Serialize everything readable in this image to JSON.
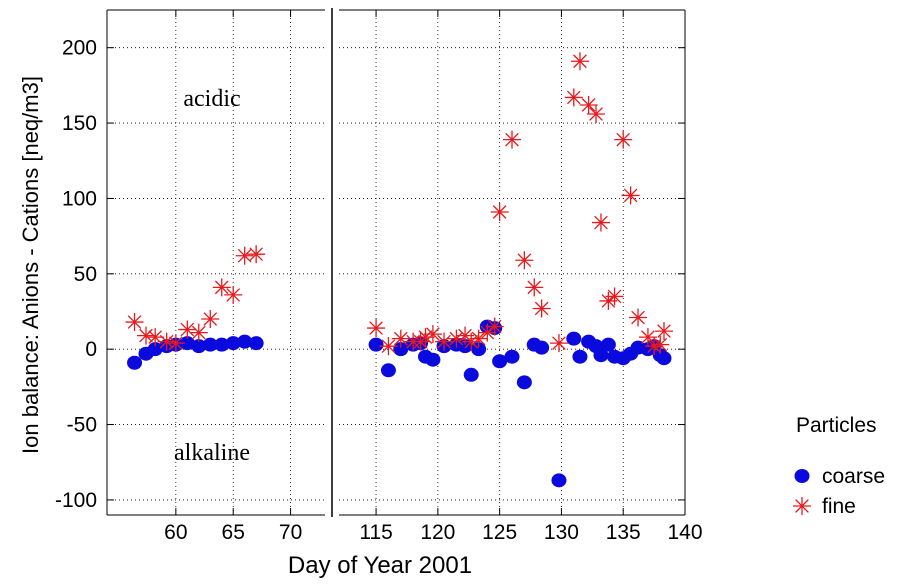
{
  "chart_data": {
    "type": "scatter",
    "ylabel": "Ion balance:  Anions - Cations  [neq/m3]",
    "xlabel": "Day of Year 2001",
    "ylim": [
      -110,
      225
    ],
    "grid": "dotted",
    "panels": [
      {
        "xlim": [
          54,
          73
        ],
        "xticks": [
          60,
          65,
          70
        ]
      },
      {
        "xlim": [
          112,
          140
        ],
        "xticks": [
          115,
          120,
          125,
          130,
          135,
          140
        ]
      }
    ],
    "yticks": [
      200,
      150,
      100,
      50,
      0,
      -50,
      -100
    ],
    "annotations": [
      {
        "text": "acidic",
        "x": 63.5,
        "y": 170
      },
      {
        "text": "alkaline",
        "x": 63.5,
        "y": -78
      }
    ],
    "legend": {
      "title": "Particles",
      "position": "right",
      "entries": [
        "coarse",
        "fine"
      ]
    },
    "colors": {
      "coarse": "#0a0adf",
      "fine": "#e8191c"
    },
    "series": [
      {
        "name": "coarse",
        "marker": "circle",
        "points": [
          [
            56.4,
            -9
          ],
          [
            57.4,
            -3
          ],
          [
            58.2,
            0
          ],
          [
            59.2,
            2
          ],
          [
            60.0,
            3
          ],
          [
            61.0,
            4
          ],
          [
            62.0,
            2
          ],
          [
            63.0,
            3
          ],
          [
            64.0,
            3
          ],
          [
            65.0,
            4
          ],
          [
            66.0,
            5
          ],
          [
            67.0,
            4
          ],
          [
            115.0,
            3
          ],
          [
            116.0,
            -14
          ],
          [
            117.0,
            0
          ],
          [
            118.0,
            3
          ],
          [
            118.6,
            4
          ],
          [
            119.0,
            -5
          ],
          [
            119.6,
            -7
          ],
          [
            120.5,
            2
          ],
          [
            121.5,
            3
          ],
          [
            122.2,
            2
          ],
          [
            122.7,
            -17
          ],
          [
            123.3,
            0
          ],
          [
            124.0,
            15
          ],
          [
            124.6,
            14
          ],
          [
            125.0,
            -8
          ],
          [
            126.0,
            -5
          ],
          [
            127.0,
            -22
          ],
          [
            127.8,
            3
          ],
          [
            128.4,
            1
          ],
          [
            129.8,
            -87
          ],
          [
            131.0,
            7
          ],
          [
            131.5,
            -5
          ],
          [
            132.2,
            5
          ],
          [
            132.8,
            2
          ],
          [
            133.2,
            -4
          ],
          [
            133.8,
            3
          ],
          [
            134.3,
            -5
          ],
          [
            135.0,
            -6
          ],
          [
            135.6,
            -3
          ],
          [
            136.2,
            1
          ],
          [
            137.0,
            0
          ],
          [
            137.5,
            2
          ],
          [
            138.0,
            -4
          ],
          [
            138.3,
            -6
          ]
        ]
      },
      {
        "name": "fine",
        "marker": "asterisk",
        "points": [
          [
            56.4,
            18
          ],
          [
            57.4,
            9
          ],
          [
            58.2,
            8
          ],
          [
            59.2,
            5
          ],
          [
            60.0,
            4
          ],
          [
            61.0,
            13
          ],
          [
            62.0,
            11
          ],
          [
            63.0,
            20
          ],
          [
            64.0,
            41
          ],
          [
            65.0,
            36
          ],
          [
            66.0,
            62
          ],
          [
            67.0,
            63
          ],
          [
            115.0,
            14
          ],
          [
            116.0,
            2
          ],
          [
            117.0,
            7
          ],
          [
            118.0,
            5
          ],
          [
            118.6,
            5
          ],
          [
            119.0,
            8
          ],
          [
            119.6,
            10
          ],
          [
            120.5,
            5
          ],
          [
            121.5,
            7
          ],
          [
            122.2,
            9
          ],
          [
            122.7,
            5
          ],
          [
            123.3,
            7
          ],
          [
            124.0,
            11
          ],
          [
            124.6,
            15
          ],
          [
            125.0,
            91
          ],
          [
            126.0,
            139
          ],
          [
            127.0,
            59
          ],
          [
            127.8,
            41
          ],
          [
            128.4,
            27
          ],
          [
            129.8,
            4
          ],
          [
            131.0,
            167
          ],
          [
            131.5,
            191
          ],
          [
            132.2,
            162
          ],
          [
            132.8,
            156
          ],
          [
            133.2,
            84
          ],
          [
            133.8,
            32
          ],
          [
            134.3,
            35
          ],
          [
            135.0,
            139
          ],
          [
            135.6,
            102
          ],
          [
            136.2,
            21
          ],
          [
            137.0,
            8
          ],
          [
            137.5,
            2
          ],
          [
            138.0,
            3
          ],
          [
            138.3,
            12
          ]
        ]
      }
    ]
  }
}
